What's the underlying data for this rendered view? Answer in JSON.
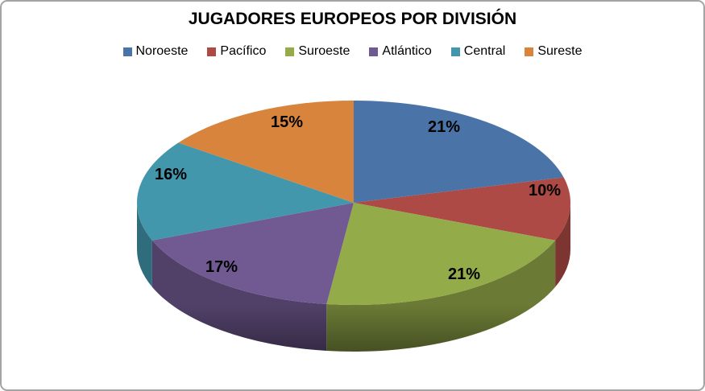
{
  "frame": {
    "background": "#ffffff",
    "border_color": "#a4a4a4"
  },
  "chart_data": {
    "type": "pie",
    "style": "pie-3d",
    "title": "JUGADORES EUROPEOS POR DIVISIÓN",
    "legend_position": "top",
    "direction": "clockwise",
    "start_angle_deg": 0,
    "unit": "%",
    "categories": [
      "Noroeste",
      "Pacífico",
      "Suroeste",
      "Atlántico",
      "Central",
      "Sureste"
    ],
    "values": [
      21,
      10,
      21,
      17,
      16,
      15
    ],
    "data_labels": [
      "21%",
      "10%",
      "21%",
      "17%",
      "16%",
      "15%"
    ],
    "colors": [
      "#4a73a8",
      "#ad4a46",
      "#94ab4a",
      "#715a92",
      "#4397ac",
      "#d9843d"
    ]
  }
}
